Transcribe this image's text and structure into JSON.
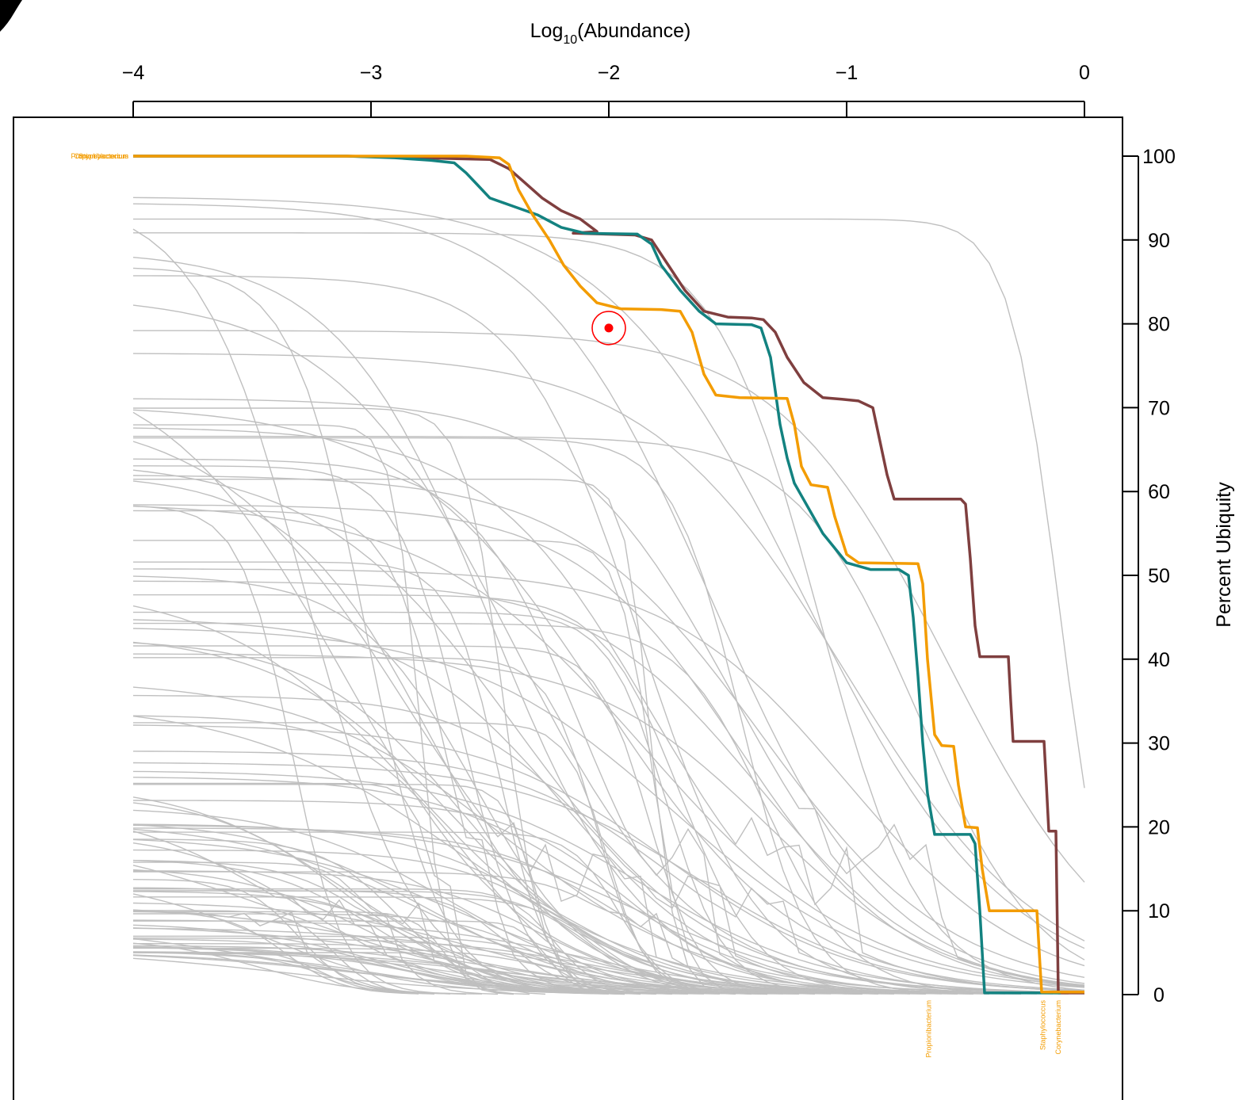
{
  "chart_data": {
    "type": "line",
    "xlabel_prefix": "Log",
    "xlabel_sub": "10",
    "xlabel_suffix": "(Abundance)",
    "ylabel": "Percent Ubiquity",
    "x_ticks": [
      -4,
      -3,
      -2,
      -1,
      0
    ],
    "x_tick_labels": [
      "−4",
      "−3",
      "−2",
      "−1",
      "0"
    ],
    "y_ticks": [
      0,
      10,
      20,
      30,
      40,
      50,
      60,
      70,
      80,
      90,
      100
    ],
    "y_tick_labels": [
      "0",
      "10",
      "20",
      "30",
      "40",
      "50",
      "60",
      "70",
      "80",
      "90",
      "100"
    ],
    "xlim": [
      -4.5,
      0.17
    ],
    "ylim": [
      -12,
      100
    ],
    "x_axis_position": "top",
    "y_axis_position": "right",
    "grid": false,
    "background_series": {
      "color": "#bfbfbf",
      "count": 120
    },
    "highlighted_series": [
      {
        "name": "Corynebacterium",
        "color": "#7f3f3f",
        "points": [
          [
            -4,
            100
          ],
          [
            -3.1,
            100
          ],
          [
            -2.5,
            99.6
          ],
          [
            -2.42,
            98.5
          ],
          [
            -2.36,
            97
          ],
          [
            -2.28,
            95
          ],
          [
            -2.2,
            93.5
          ],
          [
            -2.12,
            92.5
          ],
          [
            -2.05,
            91
          ],
          [
            -2.15,
            90.8
          ],
          [
            -1.89,
            90.6
          ],
          [
            -1.82,
            90
          ],
          [
            -1.75,
            87
          ],
          [
            -1.68,
            84
          ],
          [
            -1.6,
            81.5
          ],
          [
            -1.5,
            80.8
          ],
          [
            -1.4,
            80.7
          ],
          [
            -1.35,
            80.5
          ],
          [
            -1.3,
            79
          ],
          [
            -1.25,
            76
          ],
          [
            -1.18,
            73
          ],
          [
            -1.1,
            71.2
          ],
          [
            -1.02,
            71
          ],
          [
            -0.95,
            70.8
          ],
          [
            -0.89,
            70
          ],
          [
            -0.86,
            66
          ],
          [
            -0.83,
            62
          ],
          [
            -0.8,
            59.1
          ],
          [
            -0.52,
            59.1
          ],
          [
            -0.5,
            58.5
          ],
          [
            -0.48,
            52
          ],
          [
            -0.46,
            44
          ],
          [
            -0.44,
            40.3
          ],
          [
            -0.32,
            40.3
          ],
          [
            -0.31,
            35
          ],
          [
            -0.3,
            30.2
          ],
          [
            -0.17,
            30.2
          ],
          [
            -0.16,
            25
          ],
          [
            -0.15,
            19.5
          ],
          [
            -0.12,
            19.5
          ],
          [
            -0.115,
            10
          ],
          [
            -0.11,
            0.2
          ],
          [
            0,
            0.2
          ]
        ]
      },
      {
        "name": "Propionibacterium",
        "color": "#138280",
        "points": [
          [
            -4,
            100
          ],
          [
            -3.1,
            100
          ],
          [
            -2.9,
            99.8
          ],
          [
            -2.75,
            99.5
          ],
          [
            -2.65,
            99.2
          ],
          [
            -2.6,
            98
          ],
          [
            -2.55,
            96.5
          ],
          [
            -2.5,
            95
          ],
          [
            -2.4,
            94
          ],
          [
            -2.3,
            93
          ],
          [
            -2.2,
            91.5
          ],
          [
            -2.1,
            90.8
          ],
          [
            -1.88,
            90.7
          ],
          [
            -1.82,
            89.5
          ],
          [
            -1.78,
            87
          ],
          [
            -1.7,
            84
          ],
          [
            -1.62,
            81.5
          ],
          [
            -1.55,
            80
          ],
          [
            -1.4,
            79.9
          ],
          [
            -1.36,
            79.5
          ],
          [
            -1.32,
            76
          ],
          [
            -1.3,
            72
          ],
          [
            -1.28,
            68
          ],
          [
            -1.25,
            64
          ],
          [
            -1.22,
            61
          ],
          [
            -1.18,
            59
          ],
          [
            -1.1,
            55
          ],
          [
            -1.0,
            51.5
          ],
          [
            -0.9,
            50.7
          ],
          [
            -0.78,
            50.7
          ],
          [
            -0.74,
            50
          ],
          [
            -0.72,
            45
          ],
          [
            -0.7,
            38
          ],
          [
            -0.68,
            30
          ],
          [
            -0.66,
            24
          ],
          [
            -0.63,
            19.1
          ],
          [
            -0.48,
            19.1
          ],
          [
            -0.46,
            18
          ],
          [
            -0.44,
            10
          ],
          [
            -0.42,
            0.2
          ],
          [
            -0.1,
            0.2
          ]
        ]
      },
      {
        "name": "Staphylococcus",
        "color": "#f39c00",
        "points": [
          [
            -4,
            100
          ],
          [
            -2.6,
            100
          ],
          [
            -2.46,
            99.8
          ],
          [
            -2.42,
            99
          ],
          [
            -2.38,
            96
          ],
          [
            -2.32,
            93
          ],
          [
            -2.25,
            90
          ],
          [
            -2.19,
            87
          ],
          [
            -2.12,
            84.5
          ],
          [
            -2.05,
            82.5
          ],
          [
            -1.95,
            81.8
          ],
          [
            -1.78,
            81.7
          ],
          [
            -1.7,
            81.5
          ],
          [
            -1.65,
            79
          ],
          [
            -1.6,
            74
          ],
          [
            -1.55,
            71.5
          ],
          [
            -1.45,
            71.2
          ],
          [
            -1.25,
            71.1
          ],
          [
            -1.22,
            68
          ],
          [
            -1.19,
            63
          ],
          [
            -1.15,
            60.8
          ],
          [
            -1.08,
            60.5
          ],
          [
            -1.05,
            57
          ],
          [
            -1.0,
            52.5
          ],
          [
            -0.95,
            51.5
          ],
          [
            -0.7,
            51.4
          ],
          [
            -0.68,
            49
          ],
          [
            -0.66,
            40
          ],
          [
            -0.63,
            31
          ],
          [
            -0.6,
            29.7
          ],
          [
            -0.55,
            29.6
          ],
          [
            -0.53,
            25
          ],
          [
            -0.5,
            20
          ],
          [
            -0.45,
            19.9
          ],
          [
            -0.43,
            15
          ],
          [
            -0.4,
            10
          ],
          [
            -0.2,
            10
          ],
          [
            -0.19,
            5
          ],
          [
            -0.18,
            0.3
          ],
          [
            0,
            0.3
          ]
        ]
      }
    ],
    "highlight_marker": {
      "x": -2.0,
      "y": 79.5,
      "color": "#ff0000"
    },
    "annotations": [
      {
        "text": "Propionibacterium",
        "x": -0.655,
        "position": "below-axis-vertical"
      },
      {
        "text": "Staphylococcus",
        "x": -0.175,
        "position": "below-axis-vertical"
      },
      {
        "text": "Corynebacterium",
        "x": -0.11,
        "position": "below-axis-vertical"
      },
      {
        "text": "Propionibacterium",
        "x": -4,
        "y": 100,
        "position": "left-overlap"
      },
      {
        "text": "Staphylococcus",
        "x": -4,
        "y": 100,
        "position": "left-overlap"
      },
      {
        "text": "Corynebacterium",
        "x": -4,
        "y": 100,
        "position": "left-overlap"
      }
    ]
  }
}
